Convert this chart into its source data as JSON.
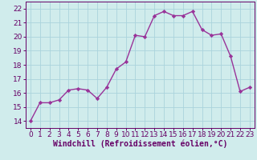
{
  "x": [
    0,
    1,
    2,
    3,
    4,
    5,
    6,
    7,
    8,
    9,
    10,
    11,
    12,
    13,
    14,
    15,
    16,
    17,
    18,
    19,
    20,
    21,
    22,
    23
  ],
  "y": [
    14.0,
    15.3,
    15.3,
    15.5,
    16.2,
    16.3,
    16.2,
    15.6,
    16.4,
    17.7,
    18.2,
    20.1,
    20.0,
    21.5,
    21.8,
    21.5,
    21.5,
    21.8,
    20.5,
    20.1,
    20.2,
    18.6,
    16.1,
    16.4
  ],
  "line_color": "#993399",
  "marker": "D",
  "marker_size": 2.2,
  "line_width": 1.0,
  "xlabel": "Windchill (Refroidissement éolien,°C)",
  "xlabel_fontsize": 7,
  "ylim": [
    13.5,
    22.5
  ],
  "xlim": [
    -0.5,
    23.5
  ],
  "yticks": [
    14,
    15,
    16,
    17,
    18,
    19,
    20,
    21,
    22
  ],
  "xticks": [
    0,
    1,
    2,
    3,
    4,
    5,
    6,
    7,
    8,
    9,
    10,
    11,
    12,
    13,
    14,
    15,
    16,
    17,
    18,
    19,
    20,
    21,
    22,
    23
  ],
  "grid_color": "#aad4dc",
  "background_color": "#d0ecec",
  "tick_color": "#660066",
  "spine_color": "#660066",
  "tick_fontsize": 6.5,
  "xlabel_fontsize_val": 7.0,
  "xlabel_bold": true
}
